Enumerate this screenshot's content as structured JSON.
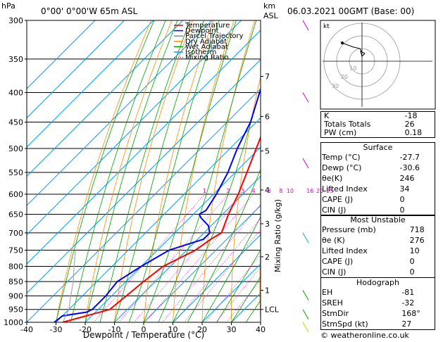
{
  "header": {
    "hpa_label": "hPa",
    "location": "0°00' 0°00'W 65m ASL",
    "km_label": "km",
    "asl_label": "ASL",
    "datetime": "06.03.2021 00GMT (Base: 00)"
  },
  "legend": [
    {
      "label": "Temperature",
      "color": "#ff0000",
      "dash": false
    },
    {
      "label": "Dewpoint",
      "color": "#0000ff",
      "dash": false
    },
    {
      "label": "Parcel Trajectory",
      "color": "#888888",
      "dash": false
    },
    {
      "label": "Dry Adiabat",
      "color": "#ff8c00",
      "dash": false
    },
    {
      "label": "Wet Adiabat",
      "color": "#00a000",
      "dash": false
    },
    {
      "label": "Isotherm",
      "color": "#00a0ff",
      "dash": false
    },
    {
      "label": "Mixing Ratio",
      "color": "#d000d0",
      "dash": true
    }
  ],
  "chart_data": {
    "type": "line",
    "xlabel": "Dewpoint / Temperature (°C)",
    "ylabel": "Mixing Ratio (g/kg)",
    "x_ticks": [
      "-40",
      "-30",
      "-20",
      "-10",
      "0",
      "10",
      "20",
      "30",
      "40"
    ],
    "xlim": [
      -40,
      40
    ],
    "pressure_levels": [
      "300",
      "350",
      "400",
      "450",
      "500",
      "550",
      "600",
      "650",
      "700",
      "750",
      "800",
      "850",
      "900",
      "950",
      "1000"
    ],
    "ylim": [
      1000,
      300
    ],
    "km_ticks": [
      {
        "label": "7",
        "p": 375
      },
      {
        "label": "6",
        "p": 440
      },
      {
        "label": "5",
        "p": 505
      },
      {
        "label": "4",
        "p": 590
      },
      {
        "label": "3",
        "p": 675
      },
      {
        "label": "2",
        "p": 770
      },
      {
        "label": "1",
        "p": 880
      },
      {
        "label": "LCL",
        "p": 950
      }
    ],
    "mixing_ratio_labels": [
      "1",
      "2",
      "3",
      "4",
      "6",
      "8",
      "10",
      "16",
      "20",
      "25"
    ],
    "series": [
      {
        "name": "Temperature",
        "color": "#ff0000",
        "points": [
          [
            1000,
            -27.7
          ],
          [
            950,
            -16
          ],
          [
            900,
            -15
          ],
          [
            850,
            -14
          ],
          [
            800,
            -12.5
          ],
          [
            750,
            -7
          ],
          [
            718,
            -5.5
          ],
          [
            700,
            -4
          ],
          [
            650,
            -8
          ],
          [
            600,
            -11.5
          ],
          [
            550,
            -16
          ],
          [
            500,
            -21
          ],
          [
            450,
            -26.5
          ],
          [
            400,
            -33
          ],
          [
            350,
            -40
          ],
          [
            300,
            -48.5
          ]
        ]
      },
      {
        "name": "Dewpoint",
        "color": "#0000ff",
        "points": [
          [
            1000,
            -30.6
          ],
          [
            975,
            -30
          ],
          [
            960,
            -23
          ],
          [
            950,
            -22
          ],
          [
            920,
            -22
          ],
          [
            900,
            -22
          ],
          [
            850,
            -23
          ],
          [
            800,
            -20
          ],
          [
            750,
            -16
          ],
          [
            718,
            -8
          ],
          [
            700,
            -8
          ],
          [
            680,
            -11
          ],
          [
            660,
            -16
          ],
          [
            650,
            -18
          ],
          [
            640,
            -17
          ],
          [
            600,
            -19
          ],
          [
            550,
            -22.5
          ],
          [
            500,
            -27.5
          ],
          [
            450,
            -32
          ],
          [
            400,
            -39
          ],
          [
            350,
            -46
          ],
          [
            300,
            -55
          ]
        ]
      },
      {
        "name": "Parcel Trajectory",
        "color": "#aaaaaa",
        "points": [
          [
            1000,
            -27.7
          ],
          [
            950,
            -30
          ],
          [
            900,
            -34
          ],
          [
            850,
            -38
          ],
          [
            800,
            -43
          ],
          [
            750,
            -48
          ]
        ]
      }
    ]
  },
  "hodograph": {
    "label": "kt",
    "ring_labels": [
      "10",
      "20",
      "30"
    ]
  },
  "indices": [
    {
      "label": "K",
      "value": "-18"
    },
    {
      "label": "Totals Totals",
      "value": "26"
    },
    {
      "label": "PW (cm)",
      "value": "0.18"
    }
  ],
  "surface": {
    "title": "Surface",
    "rows": [
      {
        "label": "Temp (°C)",
        "value": "-27.7"
      },
      {
        "label": "Dewp (°C)",
        "value": "-30.6"
      },
      {
        "label": "θe(K)",
        "value": "246"
      },
      {
        "label": "Lifted Index",
        "value": "34"
      },
      {
        "label": "CAPE (J)",
        "value": "0"
      },
      {
        "label": "CIN (J)",
        "value": "0"
      }
    ]
  },
  "most_unstable": {
    "title": "Most Unstable",
    "rows": [
      {
        "label": "Pressure (mb)",
        "value": "718"
      },
      {
        "label": "θe (K)",
        "value": "276"
      },
      {
        "label": "Lifted Index",
        "value": "10"
      },
      {
        "label": "CAPE (J)",
        "value": "0"
      },
      {
        "label": "CIN (J)",
        "value": "0"
      }
    ]
  },
  "hodograph_box": {
    "title": "Hodograph",
    "rows": [
      {
        "label": "EH",
        "value": "-81"
      },
      {
        "label": "SREH",
        "value": "-32"
      },
      {
        "label": "StmDir",
        "value": "168°"
      },
      {
        "label": "StmSpd (kt)",
        "value": "27"
      }
    ]
  },
  "footer": "© weatheronline.co.uk"
}
